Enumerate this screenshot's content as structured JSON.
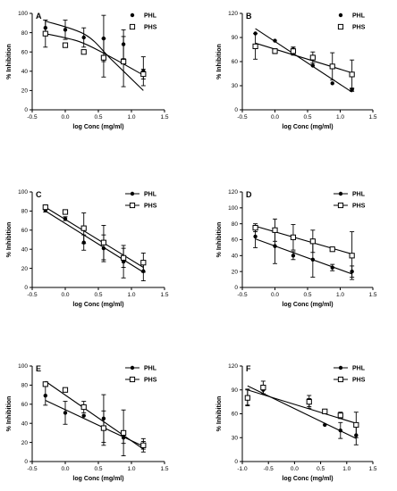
{
  "chart_data": [
    {
      "type": "scatter",
      "panel_label": "A",
      "xlabel": "log Conc (mg/ml)",
      "ylabel": "% Inhibition",
      "xlim": [
        -0.5,
        1.5
      ],
      "ylim": [
        0,
        100
      ],
      "xticks": [
        -0.5,
        0.0,
        0.5,
        1.0,
        1.5
      ],
      "yticks": [
        0,
        20,
        40,
        60,
        80,
        100
      ],
      "ytick_labels": [
        "0",
        "20",
        "40",
        "60",
        "80",
        "100"
      ],
      "legend_position": "top-right",
      "series": [
        {
          "name": "PHL",
          "marker": "filled-circle",
          "fit": "curve",
          "points": [
            {
              "x": -0.3,
              "y": 85,
              "err": 8
            },
            {
              "x": 0.0,
              "y": 83,
              "err": 10
            },
            {
              "x": 0.28,
              "y": 75,
              "err": 10
            },
            {
              "x": 0.58,
              "y": 74,
              "err": 24
            },
            {
              "x": 0.88,
              "y": 68,
              "err": 15
            },
            {
              "x": 1.18,
              "y": 40,
              "err": 15
            }
          ],
          "fit_line": [
            {
              "x": -0.3,
              "y": 92
            },
            {
              "x": 0.3,
              "y": 78
            },
            {
              "x": 0.7,
              "y": 52
            },
            {
              "x": 1.18,
              "y": 20
            }
          ]
        },
        {
          "name": "PHS",
          "marker": "open-square",
          "fit": "curve",
          "points": [
            {
              "x": -0.3,
              "y": 79,
              "err": 14
            },
            {
              "x": 0.0,
              "y": 67,
              "err": 2
            },
            {
              "x": 0.28,
              "y": 60,
              "err": 2
            },
            {
              "x": 0.58,
              "y": 54,
              "err": 20
            },
            {
              "x": 0.88,
              "y": 50,
              "err": 26
            },
            {
              "x": 1.18,
              "y": 37,
              "err": 5
            }
          ],
          "fit_line": [
            {
              "x": -0.3,
              "y": 79
            },
            {
              "x": 0.2,
              "y": 71
            },
            {
              "x": 0.6,
              "y": 58
            },
            {
              "x": 1.18,
              "y": 36
            }
          ]
        }
      ]
    },
    {
      "type": "scatter",
      "panel_label": "B",
      "xlabel": "log Conc (mg/ml)",
      "ylabel": "% Inhibition",
      "xlim": [
        -0.5,
        1.5
      ],
      "ylim": [
        0,
        120
      ],
      "xticks": [
        -0.5,
        0.0,
        0.5,
        1.0,
        1.5
      ],
      "yticks": [
        0,
        30,
        60,
        90,
        120
      ],
      "ytick_labels": [
        "0",
        "30",
        "60",
        "90",
        "120"
      ],
      "legend_position": "top-right",
      "series": [
        {
          "name": "PHL",
          "marker": "filled-circle",
          "fit": "linear",
          "points": [
            {
              "x": -0.3,
              "y": 95,
              "err": 0
            },
            {
              "x": 0.0,
              "y": 86,
              "err": 0
            },
            {
              "x": 0.28,
              "y": 75,
              "err": 3
            },
            {
              "x": 0.58,
              "y": 55,
              "err": 0
            },
            {
              "x": 0.88,
              "y": 33,
              "err": 0
            },
            {
              "x": 1.18,
              "y": 25,
              "err": 2
            }
          ],
          "fit_line": [
            {
              "x": -0.3,
              "y": 101
            },
            {
              "x": 1.18,
              "y": 22
            }
          ]
        },
        {
          "name": "PHS",
          "marker": "open-square",
          "fit": "linear",
          "points": [
            {
              "x": -0.3,
              "y": 79,
              "err": 16
            },
            {
              "x": 0.0,
              "y": 73,
              "err": 3
            },
            {
              "x": 0.28,
              "y": 73,
              "err": 5
            },
            {
              "x": 0.58,
              "y": 65,
              "err": 7
            },
            {
              "x": 0.88,
              "y": 54,
              "err": 17
            },
            {
              "x": 1.18,
              "y": 44,
              "err": 18
            }
          ],
          "fit_line": [
            {
              "x": -0.3,
              "y": 83
            },
            {
              "x": 1.18,
              "y": 46
            }
          ]
        }
      ]
    },
    {
      "type": "scatter",
      "panel_label": "C",
      "xlabel": "log Conc (mg/ml)",
      "ylabel": "% Inhibition",
      "xlim": [
        -0.5,
        1.5
      ],
      "ylim": [
        0,
        100
      ],
      "xticks": [
        -0.5,
        0.0,
        0.5,
        1.0,
        1.5
      ],
      "yticks": [
        0,
        20,
        40,
        60,
        80,
        100
      ],
      "ytick_labels": [
        "0",
        "20",
        "40",
        "60",
        "80",
        "100"
      ],
      "legend_position": "top-right",
      "series": [
        {
          "name": "PHL",
          "marker": "filled-circle",
          "fit": "linear",
          "points": [
            {
              "x": -0.3,
              "y": 81,
              "err": 2
            },
            {
              "x": 0.0,
              "y": 72,
              "err": 2
            },
            {
              "x": 0.28,
              "y": 47,
              "err": 8
            },
            {
              "x": 0.58,
              "y": 41,
              "err": 14
            },
            {
              "x": 0.88,
              "y": 27,
              "err": 17
            },
            {
              "x": 1.18,
              "y": 17,
              "err": 10
            }
          ],
          "fit_line": [
            {
              "x": -0.3,
              "y": 80
            },
            {
              "x": 1.18,
              "y": 16
            }
          ]
        },
        {
          "name": "PHS",
          "marker": "open-square",
          "fit": "linear",
          "points": [
            {
              "x": -0.3,
              "y": 84,
              "err": 2
            },
            {
              "x": 0.0,
              "y": 79,
              "err": 2
            },
            {
              "x": 0.28,
              "y": 62,
              "err": 16
            },
            {
              "x": 0.58,
              "y": 47,
              "err": 18
            },
            {
              "x": 0.88,
              "y": 31,
              "err": 10
            },
            {
              "x": 1.18,
              "y": 26,
              "err": 10
            }
          ],
          "fit_line": [
            {
              "x": -0.3,
              "y": 84
            },
            {
              "x": 1.18,
              "y": 21
            }
          ]
        }
      ]
    },
    {
      "type": "scatter",
      "panel_label": "D",
      "xlabel": "log Conc (mg/ml)",
      "ylabel": "% Inhibition",
      "xlim": [
        -0.5,
        1.5
      ],
      "ylim": [
        0,
        120
      ],
      "xticks": [
        -0.5,
        0.0,
        0.5,
        1.0,
        1.5
      ],
      "yticks": [
        0,
        20,
        40,
        60,
        80,
        100,
        120
      ],
      "ytick_labels": [
        "0",
        "20",
        "40",
        "60",
        "80",
        "100",
        "120"
      ],
      "legend_position": "top-right",
      "series": [
        {
          "name": "PHL",
          "marker": "filled-circle",
          "fit": "linear",
          "points": [
            {
              "x": -0.3,
              "y": 64,
              "err": 14
            },
            {
              "x": 0.0,
              "y": 52,
              "err": 22
            },
            {
              "x": 0.28,
              "y": 40,
              "err": 5
            },
            {
              "x": 0.58,
              "y": 35,
              "err": 22
            },
            {
              "x": 0.88,
              "y": 25,
              "err": 4
            },
            {
              "x": 1.18,
              "y": 20,
              "err": 7
            }
          ],
          "fit_line": [
            {
              "x": -0.3,
              "y": 61
            },
            {
              "x": 1.18,
              "y": 17
            }
          ]
        },
        {
          "name": "PHS",
          "marker": "open-square",
          "fit": "linear",
          "points": [
            {
              "x": -0.3,
              "y": 75,
              "err": 5
            },
            {
              "x": 0.0,
              "y": 72,
              "err": 14
            },
            {
              "x": 0.28,
              "y": 63,
              "err": 16
            },
            {
              "x": 0.58,
              "y": 58,
              "err": 14
            },
            {
              "x": 0.88,
              "y": 48,
              "err": 2
            },
            {
              "x": 1.18,
              "y": 40,
              "err": 30
            }
          ],
          "fit_line": [
            {
              "x": -0.3,
              "y": 77
            },
            {
              "x": 1.18,
              "y": 42
            }
          ]
        }
      ]
    },
    {
      "type": "scatter",
      "panel_label": "E",
      "xlabel": "log Conc (mg/ml)",
      "ylabel": "% Inhibition",
      "xlim": [
        -0.5,
        1.5
      ],
      "ylim": [
        0,
        100
      ],
      "xticks": [
        -0.5,
        0.0,
        0.5,
        1.0,
        1.5
      ],
      "yticks": [
        0,
        20,
        40,
        60,
        80,
        100
      ],
      "ytick_labels": [
        "0",
        "20",
        "40",
        "60",
        "80",
        "100"
      ],
      "legend_position": "top-right",
      "series": [
        {
          "name": "PHL",
          "marker": "filled-circle",
          "fit": "linear",
          "points": [
            {
              "x": -0.3,
              "y": 69,
              "err": 10
            },
            {
              "x": 0.0,
              "y": 51,
              "err": 12
            },
            {
              "x": 0.28,
              "y": 48,
              "err": 0
            },
            {
              "x": 0.58,
              "y": 45,
              "err": 25
            },
            {
              "x": 0.88,
              "y": 25,
              "err": 6
            },
            {
              "x": 1.18,
              "y": 17,
              "err": 4
            }
          ],
          "fit_line": [
            {
              "x": -0.3,
              "y": 64
            },
            {
              "x": 1.18,
              "y": 16
            }
          ]
        },
        {
          "name": "PHS",
          "marker": "open-square",
          "fit": "linear",
          "points": [
            {
              "x": -0.3,
              "y": 81,
              "err": 2
            },
            {
              "x": 0.0,
              "y": 75,
              "err": 2
            },
            {
              "x": 0.28,
              "y": 57,
              "err": 6
            },
            {
              "x": 0.58,
              "y": 35,
              "err": 18
            },
            {
              "x": 0.88,
              "y": 30,
              "err": 24
            },
            {
              "x": 1.18,
              "y": 17,
              "err": 7
            }
          ],
          "fit_line": [
            {
              "x": -0.3,
              "y": 84
            },
            {
              "x": 1.18,
              "y": 13
            }
          ]
        }
      ]
    },
    {
      "type": "scatter",
      "panel_label": "F",
      "xlabel": "log Conc (mg/ml)",
      "ylabel": "% Inhibition",
      "xlim": [
        -1.0,
        1.5
      ],
      "ylim": [
        0,
        120
      ],
      "xticks": [
        -1.0,
        -0.5,
        0.0,
        0.5,
        1.0,
        1.5
      ],
      "yticks": [
        0,
        30,
        60,
        90,
        120
      ],
      "ytick_labels": [
        "0",
        "30",
        "60",
        "90",
        "120"
      ],
      "legend_position": "top-right",
      "series": [
        {
          "name": "PHL",
          "marker": "filled-circle",
          "fit": "linear",
          "points": [
            {
              "x": -0.9,
              "y": 81,
              "err": 10
            },
            {
              "x": -0.6,
              "y": 90,
              "err": 5
            },
            {
              "x": 0.28,
              "y": 74,
              "err": 5
            },
            {
              "x": 0.58,
              "y": 46,
              "err": 0
            },
            {
              "x": 0.88,
              "y": 39,
              "err": 10
            },
            {
              "x": 1.18,
              "y": 33,
              "err": 12
            }
          ],
          "fit_line": [
            {
              "x": -0.9,
              "y": 95
            },
            {
              "x": 1.18,
              "y": 29
            }
          ]
        },
        {
          "name": "PHS",
          "marker": "open-square",
          "fit": "linear",
          "points": [
            {
              "x": -0.9,
              "y": 80,
              "err": 10
            },
            {
              "x": -0.6,
              "y": 93,
              "err": 8
            },
            {
              "x": 0.28,
              "y": 75,
              "err": 8
            },
            {
              "x": 0.58,
              "y": 63,
              "err": 2
            },
            {
              "x": 0.88,
              "y": 58,
              "err": 4
            },
            {
              "x": 1.18,
              "y": 46,
              "err": 16
            }
          ],
          "fit_line": [
            {
              "x": -0.9,
              "y": 90
            },
            {
              "x": 1.18,
              "y": 48
            }
          ]
        }
      ]
    }
  ]
}
